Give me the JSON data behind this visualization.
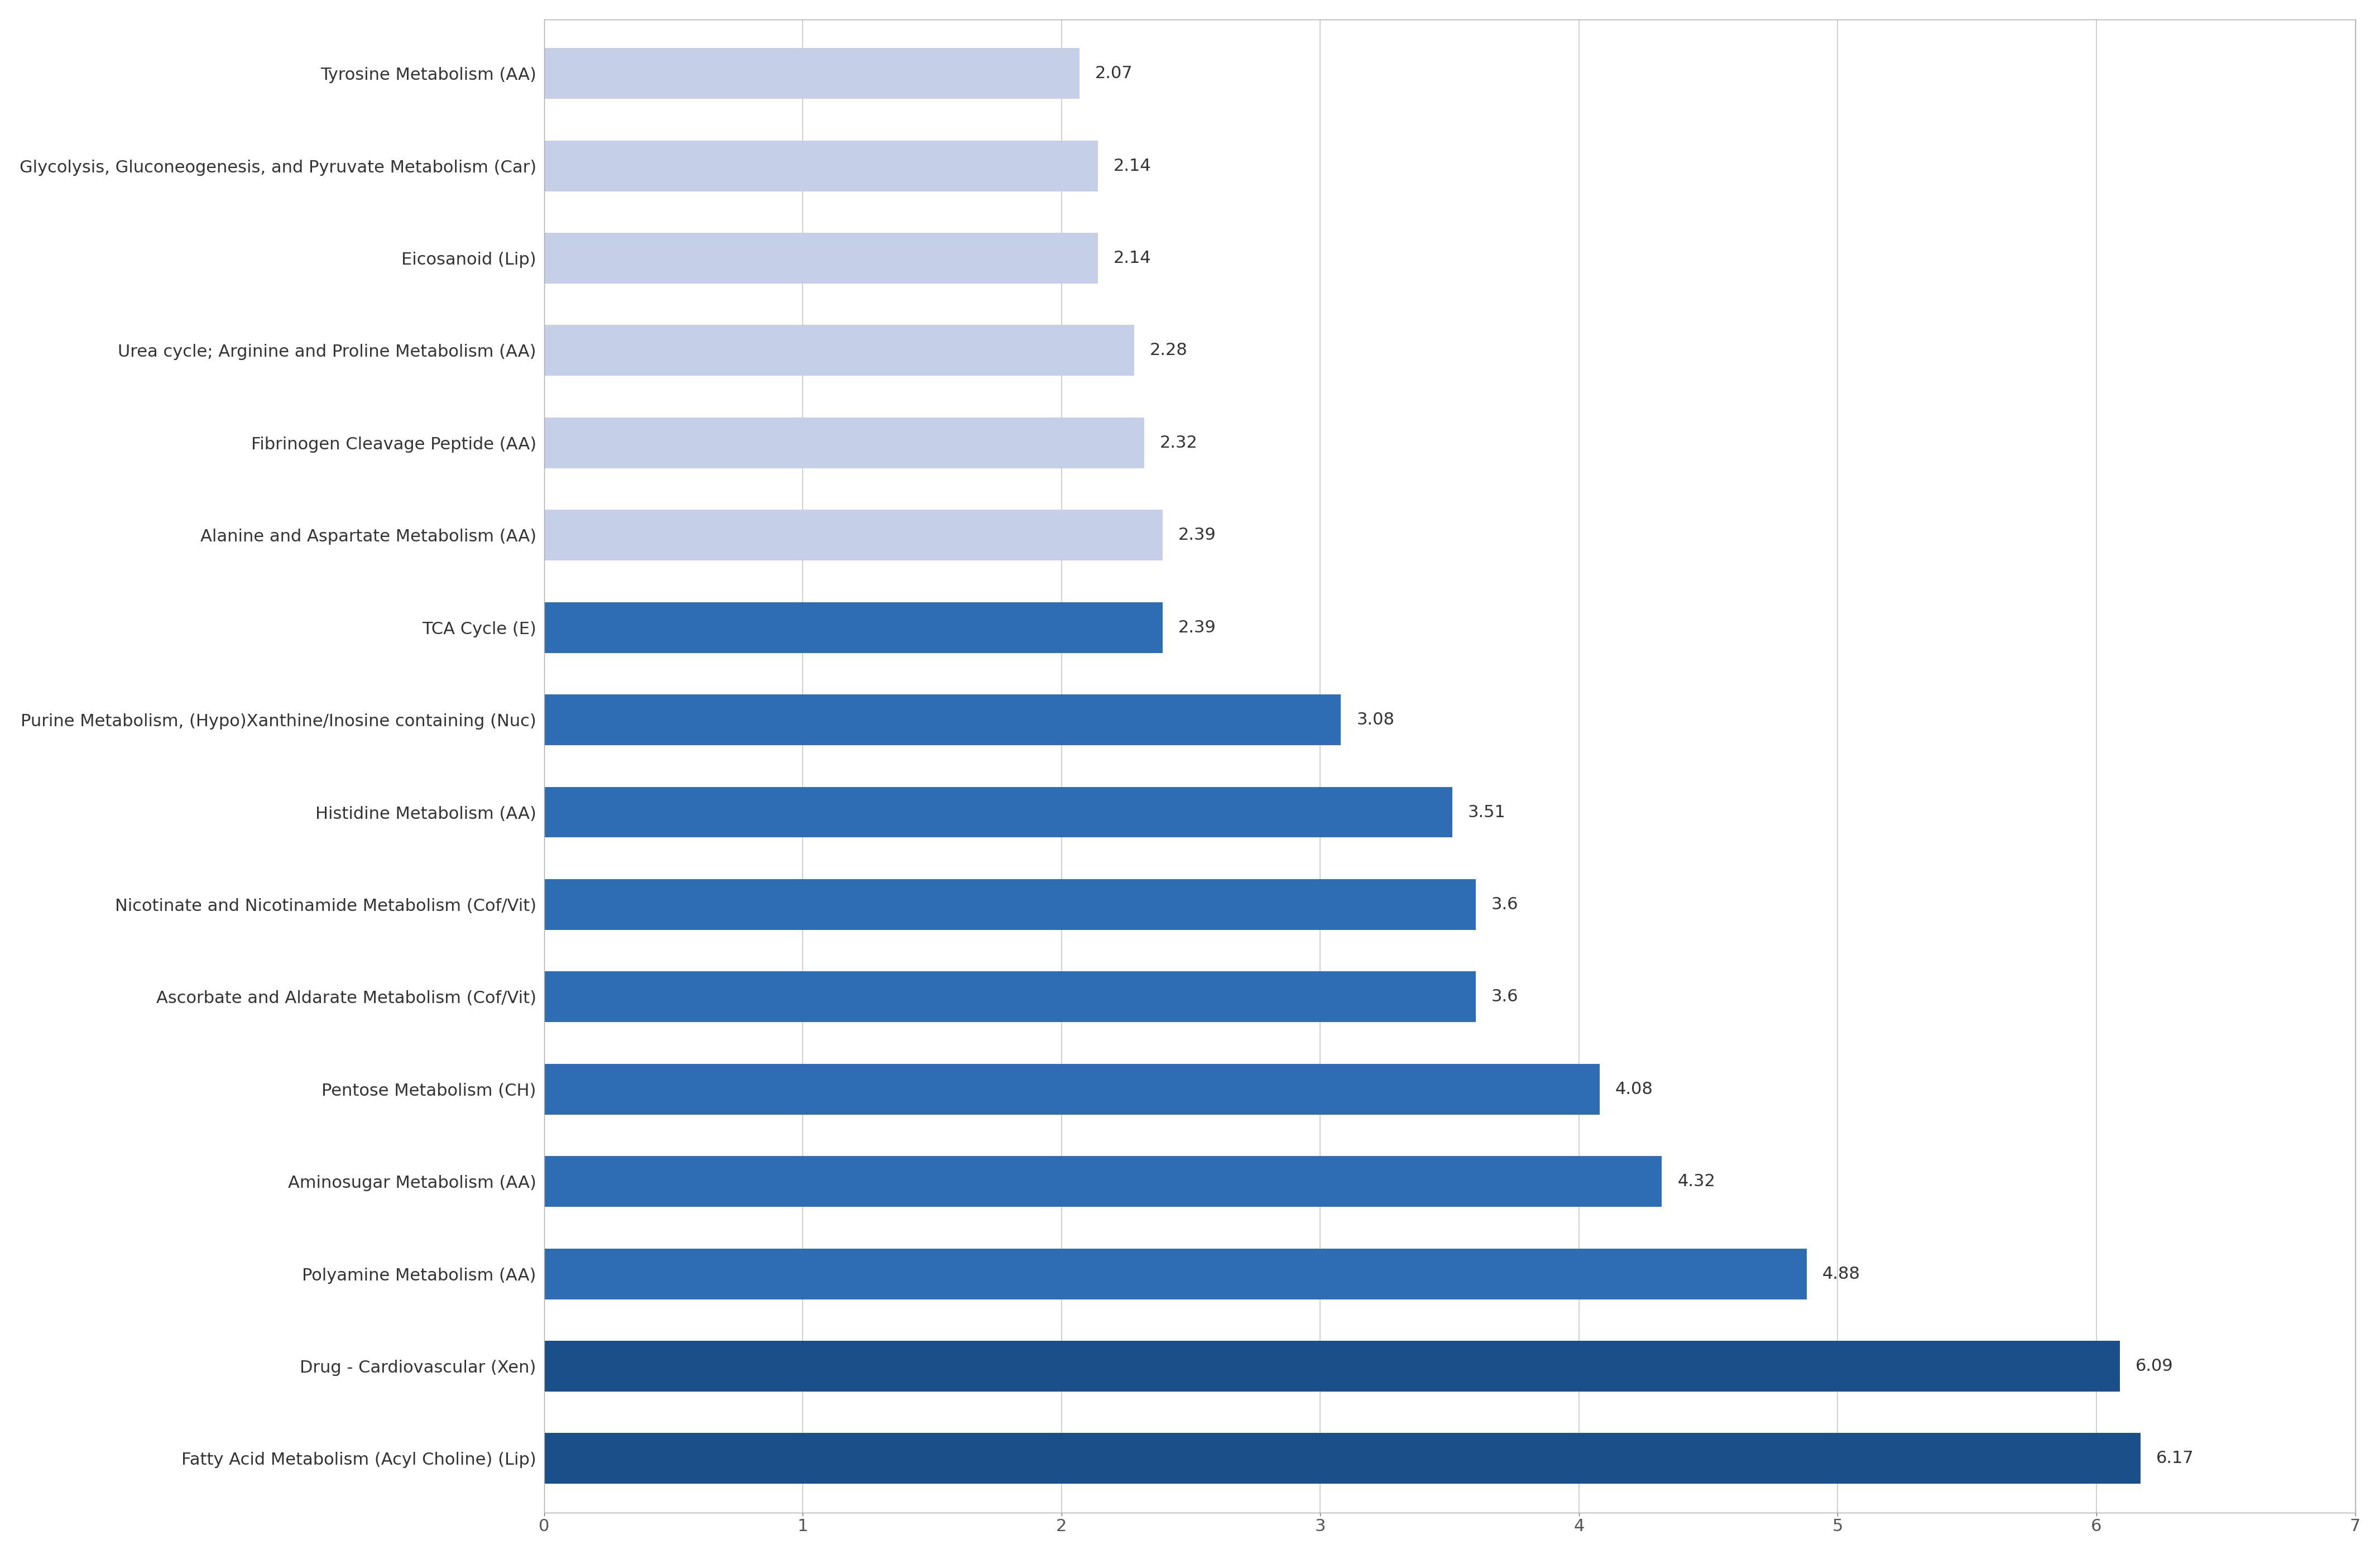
{
  "categories": [
    "Tyrosine Metabolism (AA)",
    "Glycolysis, Gluconeogenesis, and Pyruvate Metabolism (Car)",
    "Eicosanoid (Lip)",
    "Urea cycle; Arginine and Proline Metabolism (AA)",
    "Fibrinogen Cleavage Peptide (AA)",
    "Alanine and Aspartate Metabolism (AA)",
    "TCA Cycle (E)",
    "Purine Metabolism, (Hypo)Xanthine/Inosine containing (Nuc)",
    "Histidine Metabolism (AA)",
    "Nicotinate and Nicotinamide Metabolism (Cof/Vit)",
    "Ascorbate and Aldarate Metabolism (Cof/Vit)",
    "Pentose Metabolism (CH)",
    "Aminosugar Metabolism (AA)",
    "Polyamine Metabolism (AA)",
    "Drug - Cardiovascular (Xen)",
    "Fatty Acid Metabolism (Acyl Choline) (Lip)"
  ],
  "values": [
    2.07,
    2.14,
    2.14,
    2.28,
    2.32,
    2.39,
    2.39,
    3.08,
    3.51,
    3.6,
    3.6,
    4.08,
    4.32,
    4.88,
    6.09,
    6.17
  ],
  "colors": [
    "#c5d0e8",
    "#c5d0e8",
    "#c5d0e8",
    "#c5d0e8",
    "#c5d0e8",
    "#c5d0e8",
    "#2e6db4",
    "#2e6db4",
    "#2e6db4",
    "#2e6db4",
    "#2e6db4",
    "#2e6db4",
    "#2e6db4",
    "#2e6db4",
    "#1a4f8a",
    "#1a4f8a"
  ],
  "xlim": [
    0,
    7
  ],
  "xticks": [
    0,
    1,
    2,
    3,
    4,
    5,
    6,
    7
  ],
  "background_color": "#ffffff",
  "grid_color": "#c8c8c8",
  "bar_height": 0.55,
  "value_fontsize": 22,
  "label_fontsize": 22,
  "tick_fontsize": 22,
  "border_color": "#aaaaaa"
}
